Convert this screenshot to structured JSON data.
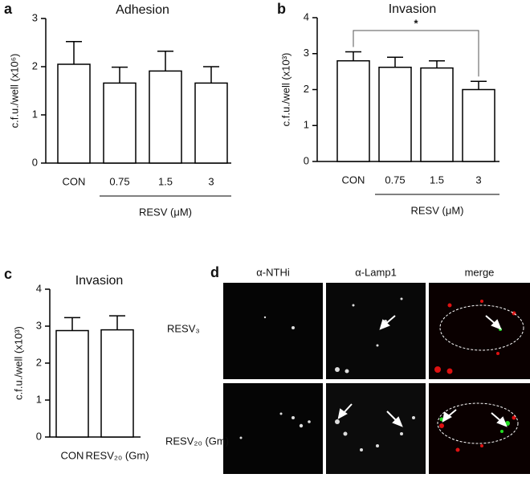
{
  "chart_data": [
    {
      "type": "bar",
      "panel": "a",
      "title": "Adhesion",
      "ylabel": "c.f.u./well (x10⁶)",
      "categories": [
        "CON",
        "0.75",
        "1.5",
        "3"
      ],
      "values": [
        2.05,
        1.66,
        1.91,
        1.66
      ],
      "errors": [
        0.47,
        0.33,
        0.41,
        0.34
      ],
      "color": "#ffffff",
      "ylim": [
        0,
        3
      ],
      "yticks": [
        0,
        1,
        2,
        3
      ],
      "group_label": "RESV (μM)"
    },
    {
      "type": "bar",
      "panel": "b",
      "title": "Invasion",
      "ylabel": "c.f.u./well (x10³)",
      "categories": [
        "CON",
        "0.75",
        "1.5",
        "3"
      ],
      "values": [
        2.8,
        2.62,
        2.6,
        2.0
      ],
      "errors": [
        0.25,
        0.28,
        0.2,
        0.23
      ],
      "color": "#ffffff",
      "ylim": [
        0,
        4
      ],
      "yticks": [
        0,
        1,
        2,
        3,
        4
      ],
      "group_label": "RESV (μM)",
      "significance": "*"
    },
    {
      "type": "bar",
      "panel": "c",
      "title": "Invasion",
      "ylabel": "c.f.u./well (x10³)",
      "categories": [
        "CON",
        "RESV₂₀ (Gm)"
      ],
      "values": [
        2.88,
        2.9
      ],
      "errors": [
        0.35,
        0.38
      ],
      "color": "#ffffff",
      "ylim": [
        0,
        4
      ],
      "yticks": [
        0,
        1,
        2,
        3,
        4
      ]
    }
  ],
  "microscopy": {
    "panel": "d",
    "columns": [
      "α-NTHi",
      "α-Lamp1",
      "merge"
    ],
    "rows": [
      "RESV₃",
      "RESV₂₀ (Gm)"
    ]
  }
}
